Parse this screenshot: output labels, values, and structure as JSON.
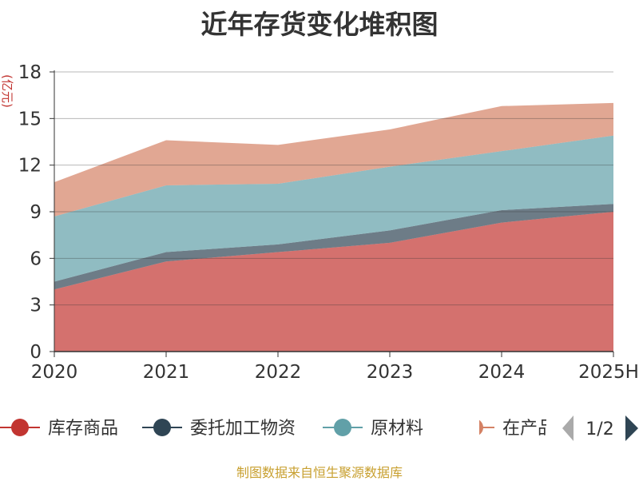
{
  "chart_data": {
    "type": "area",
    "title": "近年存货变化堆积图",
    "ylabel": "(亿元)",
    "categories": [
      "2020",
      "2021",
      "2022",
      "2023",
      "2024",
      "2025H"
    ],
    "ylim": [
      0,
      18
    ],
    "yticks": [
      0,
      3,
      6,
      9,
      12,
      15,
      18
    ],
    "grid": true,
    "stacked": true,
    "series": [
      {
        "name": "库存商品",
        "color": "#c23531",
        "values": [
          4.0,
          5.8,
          6.4,
          7.0,
          8.3,
          9.0
        ]
      },
      {
        "name": "委托加工物资",
        "color": "#2f4554",
        "values": [
          0.5,
          0.6,
          0.5,
          0.8,
          0.8,
          0.5
        ]
      },
      {
        "name": "原材料",
        "color": "#61a0a8",
        "values": [
          4.2,
          4.3,
          3.9,
          4.1,
          3.8,
          4.4
        ]
      },
      {
        "name": "在产品",
        "color": "#d48265",
        "values": [
          2.2,
          2.9,
          2.5,
          2.4,
          2.9,
          2.1
        ]
      }
    ],
    "legend_position": "bottom",
    "legend_page": "1/2",
    "legend_visible_text": [
      "库存商品",
      "委托加工物资",
      "原材料",
      "在产品"
    ]
  },
  "source": {
    "text": "制图数据来自恒生聚源数据库",
    "color": "#c8a030"
  }
}
